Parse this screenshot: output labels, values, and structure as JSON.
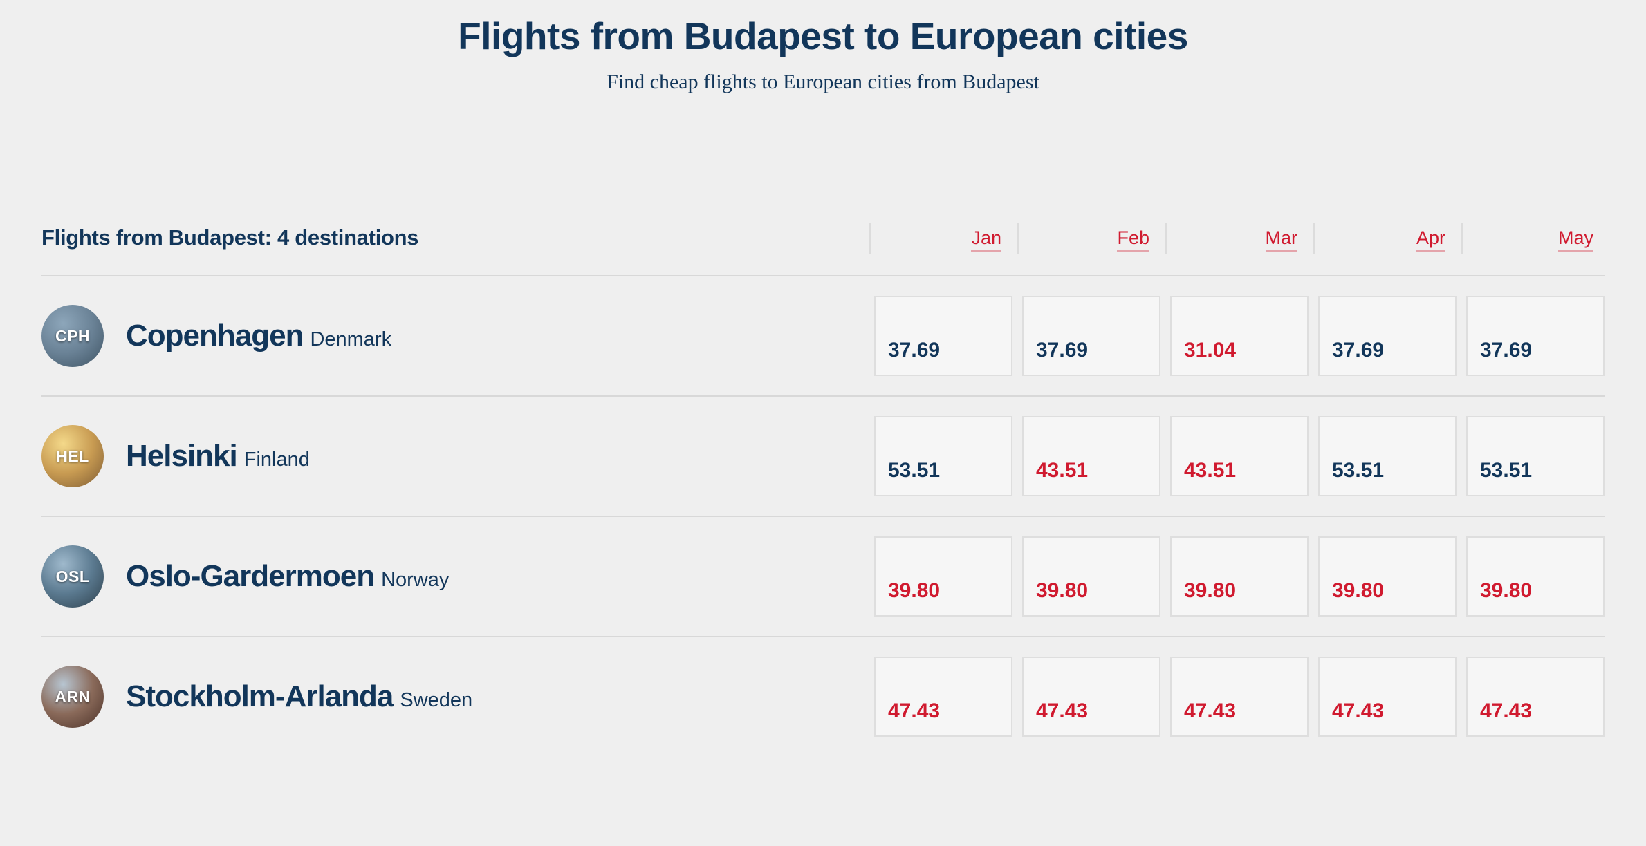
{
  "header": {
    "title": "Flights from Budapest to European cities",
    "subtitle": "Find cheap flights to European cities from Budapest"
  },
  "table": {
    "caption": "Flights from Budapest: 4 destinations",
    "months": [
      "Jan",
      "Feb",
      "Mar",
      "Apr",
      "May"
    ],
    "colors": {
      "text_primary": "#12365a",
      "accent_low": "#d01a2f",
      "background": "#efefef",
      "cell_bg": "#f6f6f6",
      "cell_border": "#dedede",
      "divider": "#d8d8d8"
    },
    "destinations": [
      {
        "code": "CPH",
        "city": "Copenhagen",
        "country": "Denmark",
        "badge_gradient": [
          "#8da6ba",
          "#6a8296",
          "#3e5363"
        ],
        "prices": [
          {
            "value": "37.69",
            "lowest": false
          },
          {
            "value": "37.69",
            "lowest": false
          },
          {
            "value": "31.04",
            "lowest": true
          },
          {
            "value": "37.69",
            "lowest": false
          },
          {
            "value": "37.69",
            "lowest": false
          }
        ]
      },
      {
        "code": "HEL",
        "city": "Helsinki",
        "country": "Finland",
        "badge_gradient": [
          "#f4d98a",
          "#c89b52",
          "#7c5a33"
        ],
        "prices": [
          {
            "value": "53.51",
            "lowest": false
          },
          {
            "value": "43.51",
            "lowest": true
          },
          {
            "value": "43.51",
            "lowest": true
          },
          {
            "value": "53.51",
            "lowest": false
          },
          {
            "value": "53.51",
            "lowest": false
          }
        ]
      },
      {
        "code": "OSL",
        "city": "Oslo-Gardermoen",
        "country": "Norway",
        "badge_gradient": [
          "#9fb9cc",
          "#5b7a90",
          "#2d3f4b"
        ],
        "prices": [
          {
            "value": "39.80",
            "lowest": true
          },
          {
            "value": "39.80",
            "lowest": true
          },
          {
            "value": "39.80",
            "lowest": true
          },
          {
            "value": "39.80",
            "lowest": true
          },
          {
            "value": "39.80",
            "lowest": true
          }
        ]
      },
      {
        "code": "ARN",
        "city": "Stockholm-Arlanda",
        "country": "Sweden",
        "badge_gradient": [
          "#b7c5d1",
          "#8a6a5a",
          "#4a3128"
        ],
        "prices": [
          {
            "value": "47.43",
            "lowest": true
          },
          {
            "value": "47.43",
            "lowest": true
          },
          {
            "value": "47.43",
            "lowest": true
          },
          {
            "value": "47.43",
            "lowest": true
          },
          {
            "value": "47.43",
            "lowest": true
          }
        ]
      }
    ]
  }
}
